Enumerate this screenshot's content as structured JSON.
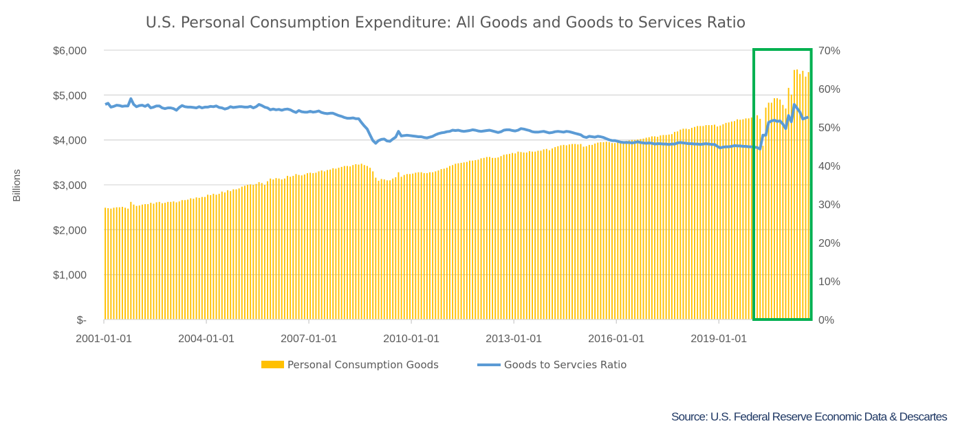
{
  "chart_data": {
    "type": "bar+line",
    "title": "U.S. Personal Consumption Expenditure: All Goods and Goods to Services Ratio",
    "ylabel": "Billions",
    "xlabel": "",
    "x_start": "2001-01",
    "x_frequency": "monthly",
    "x_ticks": [
      "2001-01-01",
      "2004-01-01",
      "2007-01-01",
      "2010-01-01",
      "2013-01-01",
      "2016-01-01",
      "2019-01-01"
    ],
    "y_left": {
      "range": [
        0,
        6000
      ],
      "ticks": [
        "$-",
        "$1,000",
        "$2,000",
        "$3,000",
        "$4,000",
        "$5,000",
        "$6,000"
      ]
    },
    "y_right": {
      "range": [
        0,
        70
      ],
      "ticks": [
        "0%",
        "10%",
        "20%",
        "30%",
        "40%",
        "50%",
        "60%",
        "70%"
      ]
    },
    "grid": true,
    "legend_position": "bottom",
    "series": [
      {
        "name": "Personal Consumption Goods",
        "type": "bar",
        "axis": "left",
        "color": "#FFC000",
        "values": [
          2490,
          2480,
          2470,
          2490,
          2500,
          2500,
          2510,
          2490,
          2470,
          2620,
          2560,
          2530,
          2540,
          2560,
          2570,
          2570,
          2600,
          2580,
          2610,
          2620,
          2590,
          2600,
          2620,
          2620,
          2630,
          2610,
          2630,
          2660,
          2660,
          2670,
          2700,
          2690,
          2720,
          2710,
          2730,
          2730,
          2780,
          2770,
          2800,
          2780,
          2800,
          2850,
          2830,
          2880,
          2860,
          2900,
          2900,
          2920,
          2960,
          2980,
          3000,
          3010,
          3000,
          3020,
          3060,
          3040,
          3000,
          3080,
          3140,
          3120,
          3150,
          3140,
          3120,
          3140,
          3200,
          3180,
          3200,
          3240,
          3220,
          3210,
          3230,
          3260,
          3270,
          3260,
          3270,
          3300,
          3320,
          3300,
          3330,
          3340,
          3370,
          3360,
          3380,
          3400,
          3420,
          3420,
          3410,
          3440,
          3460,
          3450,
          3470,
          3440,
          3420,
          3380,
          3300,
          3160,
          3090,
          3130,
          3120,
          3100,
          3100,
          3140,
          3170,
          3280,
          3180,
          3220,
          3240,
          3240,
          3250,
          3270,
          3280,
          3280,
          3260,
          3260,
          3280,
          3280,
          3300,
          3320,
          3350,
          3360,
          3380,
          3420,
          3440,
          3470,
          3480,
          3490,
          3500,
          3510,
          3540,
          3540,
          3550,
          3560,
          3590,
          3600,
          3620,
          3620,
          3600,
          3600,
          3610,
          3640,
          3670,
          3680,
          3690,
          3710,
          3700,
          3740,
          3730,
          3720,
          3720,
          3750,
          3740,
          3740,
          3760,
          3760,
          3790,
          3800,
          3770,
          3810,
          3840,
          3860,
          3880,
          3890,
          3880,
          3900,
          3910,
          3910,
          3900,
          3910,
          3850,
          3860,
          3890,
          3890,
          3920,
          3940,
          3950,
          3950,
          3960,
          3950,
          3930,
          3930,
          3950,
          3960,
          3960,
          3980,
          3990,
          4000,
          4000,
          4010,
          4020,
          4030,
          4050,
          4060,
          4080,
          4080,
          4070,
          4100,
          4110,
          4110,
          4120,
          4130,
          4180,
          4190,
          4230,
          4250,
          4250,
          4240,
          4270,
          4290,
          4310,
          4310,
          4310,
          4330,
          4330,
          4330,
          4340,
          4300,
          4320,
          4350,
          4380,
          4390,
          4410,
          4420,
          4460,
          4450,
          4460,
          4480,
          4480,
          4500,
          4540,
          4550,
          4470,
          3870,
          4720,
          4830,
          4830,
          4930,
          4930,
          4900,
          4780,
          4700,
          5160,
          5010,
          5560,
          5570,
          5470,
          5540,
          5410,
          5510
        ]
      },
      {
        "name": "Goods to Servcies Ratio",
        "type": "line",
        "axis": "right",
        "unit": "%",
        "color": "#5B9BD5",
        "values": [
          55.9,
          56.2,
          55.2,
          55.4,
          55.7,
          55.6,
          55.4,
          55.5,
          55.5,
          57.4,
          55.9,
          55.3,
          55.6,
          55.7,
          55.4,
          55.8,
          55.0,
          55.2,
          55.5,
          55.5,
          55.0,
          54.8,
          55.0,
          55.0,
          54.8,
          54.4,
          55.1,
          55.6,
          55.3,
          55.2,
          55.2,
          55.1,
          55.0,
          55.3,
          55.0,
          55.2,
          55.2,
          55.4,
          55.3,
          55.5,
          55.1,
          55.0,
          54.7,
          54.9,
          55.3,
          55.1,
          55.2,
          55.3,
          55.3,
          55.2,
          55.2,
          55.4,
          55.0,
          55.3,
          55.9,
          55.6,
          55.2,
          55.0,
          54.5,
          54.7,
          54.5,
          54.6,
          54.4,
          54.6,
          54.7,
          54.5,
          54.1,
          53.8,
          54.3,
          54.0,
          53.9,
          53.9,
          54.1,
          53.9,
          54.0,
          54.2,
          53.8,
          53.6,
          53.5,
          53.6,
          53.6,
          53.3,
          53.0,
          52.8,
          52.5,
          52.3,
          52.3,
          52.4,
          52.2,
          52.2,
          51.2,
          50.3,
          49.5,
          48.0,
          46.5,
          45.8,
          46.5,
          46.8,
          46.9,
          46.4,
          46.3,
          46.9,
          47.4,
          48.9,
          47.7,
          47.8,
          47.9,
          47.8,
          47.7,
          47.6,
          47.5,
          47.5,
          47.3,
          47.2,
          47.4,
          47.6,
          48.0,
          48.3,
          48.5,
          48.6,
          48.8,
          48.9,
          49.2,
          49.1,
          49.2,
          49.0,
          48.9,
          49.0,
          49.1,
          49.3,
          49.2,
          49.0,
          48.9,
          49.0,
          49.1,
          49.2,
          49.0,
          48.8,
          48.6,
          48.8,
          49.2,
          49.3,
          49.3,
          49.1,
          49.0,
          49.2,
          49.6,
          49.5,
          49.3,
          49.1,
          48.8,
          48.7,
          48.7,
          48.8,
          48.9,
          48.7,
          48.5,
          48.6,
          48.8,
          48.9,
          48.8,
          48.7,
          48.9,
          48.8,
          48.6,
          48.4,
          48.2,
          48.0,
          47.5,
          47.3,
          47.6,
          47.5,
          47.4,
          47.6,
          47.5,
          47.3,
          47.0,
          46.7,
          46.5,
          46.5,
          46.3,
          46.1,
          46.0,
          46.0,
          46.0,
          45.9,
          46.0,
          46.2,
          46.0,
          45.9,
          45.8,
          45.9,
          45.8,
          45.6,
          45.7,
          45.7,
          45.6,
          45.6,
          45.5,
          45.6,
          45.6,
          45.9,
          46.0,
          45.9,
          45.8,
          45.7,
          45.7,
          45.6,
          45.6,
          45.5,
          45.6,
          45.7,
          45.6,
          45.5,
          45.5,
          45.0,
          44.6,
          44.8,
          44.9,
          44.9,
          45.0,
          45.2,
          45.1,
          45.1,
          45.0,
          45.0,
          44.9,
          44.9,
          44.8,
          44.7,
          44.3,
          47.9,
          47.9,
          51.2,
          51.6,
          51.8,
          51.5,
          51.6,
          50.8,
          49.6,
          53.0,
          51.4,
          55.9,
          54.9,
          53.9,
          52.1,
          52.4,
          52.6
        ]
      }
    ],
    "annotations": [
      {
        "type": "highlight-box",
        "from": "2020-02",
        "to": "2021-08",
        "color": "#00B050"
      }
    ],
    "source": "Source: U.S. Federal Reserve  Economic Data & Descartes"
  }
}
